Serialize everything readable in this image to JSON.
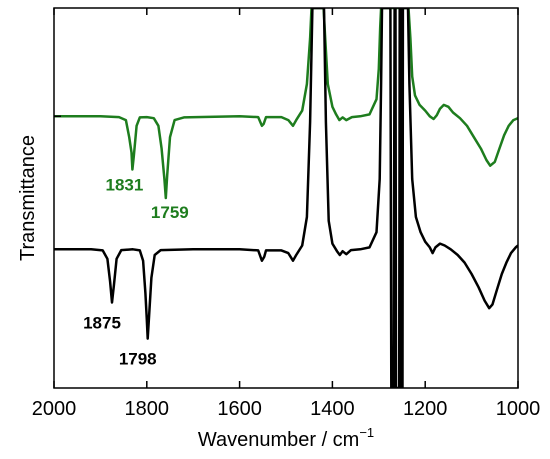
{
  "chart_data": {
    "type": "line",
    "title": "",
    "xlabel": "Wavenumber / cm",
    "xlabel_superscript": "−1",
    "ylabel": "Transmittance",
    "x_reversed": true,
    "xlim": [
      2000,
      1000
    ],
    "ylim": [
      0,
      1
    ],
    "xticks": [
      {
        "value": 2000,
        "label": "2000"
      },
      {
        "value": 1800,
        "label": "1800"
      },
      {
        "value": 1600,
        "label": "1600"
      },
      {
        "value": 1400,
        "label": "1400"
      },
      {
        "value": 1200,
        "label": "1200"
      },
      {
        "value": 1000,
        "label": "1000"
      }
    ],
    "yticks": [
      0.365,
      0.715
    ],
    "grid": false,
    "series": [
      {
        "color": "#1e7d1e",
        "points": [
          [
            2000,
            0.715
          ],
          [
            1900,
            0.715
          ],
          [
            1860,
            0.713
          ],
          [
            1845,
            0.705
          ],
          [
            1838,
            0.66
          ],
          [
            1833,
            0.62
          ],
          [
            1831,
            0.575
          ],
          [
            1828,
            0.61
          ],
          [
            1822,
            0.69
          ],
          [
            1815,
            0.712
          ],
          [
            1800,
            0.713
          ],
          [
            1785,
            0.71
          ],
          [
            1775,
            0.69
          ],
          [
            1768,
            0.63
          ],
          [
            1762,
            0.55
          ],
          [
            1759,
            0.5
          ],
          [
            1756,
            0.56
          ],
          [
            1750,
            0.66
          ],
          [
            1740,
            0.705
          ],
          [
            1720,
            0.712
          ],
          [
            1600,
            0.715
          ],
          [
            1560,
            0.713
          ],
          [
            1552,
            0.69
          ],
          [
            1548,
            0.695
          ],
          [
            1543,
            0.713
          ],
          [
            1510,
            0.713
          ],
          [
            1495,
            0.705
          ],
          [
            1485,
            0.69
          ],
          [
            1478,
            0.705
          ],
          [
            1465,
            0.73
          ],
          [
            1455,
            0.8
          ],
          [
            1448,
            0.92
          ],
          [
            1445,
            1.0
          ],
          [
            1419,
            1.0
          ],
          [
            1416,
            0.93
          ],
          [
            1410,
            0.8
          ],
          [
            1400,
            0.74
          ],
          [
            1392,
            0.72
          ],
          [
            1385,
            0.705
          ],
          [
            1378,
            0.712
          ],
          [
            1370,
            0.705
          ],
          [
            1358,
            0.713
          ],
          [
            1340,
            0.715
          ],
          [
            1320,
            0.72
          ],
          [
            1305,
            0.76
          ],
          [
            1300,
            0.84
          ],
          [
            1297,
            0.95
          ],
          [
            1295,
            1.0
          ],
          [
            1275,
            1.0
          ],
          [
            1265,
            1.0
          ],
          [
            1255,
            1.0
          ],
          [
            1245,
            1.0
          ],
          [
            1236,
            1.0
          ],
          [
            1232,
            0.92
          ],
          [
            1228,
            0.82
          ],
          [
            1222,
            0.77
          ],
          [
            1212,
            0.745
          ],
          [
            1200,
            0.73
          ],
          [
            1190,
            0.715
          ],
          [
            1182,
            0.708
          ],
          [
            1175,
            0.718
          ],
          [
            1168,
            0.735
          ],
          [
            1160,
            0.745
          ],
          [
            1150,
            0.74
          ],
          [
            1140,
            0.725
          ],
          [
            1125,
            0.71
          ],
          [
            1110,
            0.69
          ],
          [
            1095,
            0.66
          ],
          [
            1080,
            0.63
          ],
          [
            1068,
            0.6
          ],
          [
            1060,
            0.585
          ],
          [
            1050,
            0.595
          ],
          [
            1040,
            0.63
          ],
          [
            1030,
            0.665
          ],
          [
            1020,
            0.69
          ],
          [
            1010,
            0.705
          ],
          [
            1000,
            0.71
          ]
        ]
      },
      {
        "color": "#000000",
        "points": [
          [
            2000,
            0.365
          ],
          [
            1920,
            0.365
          ],
          [
            1895,
            0.362
          ],
          [
            1885,
            0.34
          ],
          [
            1879,
            0.28
          ],
          [
            1875,
            0.225
          ],
          [
            1871,
            0.27
          ],
          [
            1865,
            0.34
          ],
          [
            1855,
            0.363
          ],
          [
            1830,
            0.365
          ],
          [
            1815,
            0.362
          ],
          [
            1808,
            0.335
          ],
          [
            1803,
            0.25
          ],
          [
            1800,
            0.18
          ],
          [
            1798,
            0.13
          ],
          [
            1795,
            0.19
          ],
          [
            1790,
            0.29
          ],
          [
            1783,
            0.35
          ],
          [
            1770,
            0.363
          ],
          [
            1700,
            0.365
          ],
          [
            1600,
            0.365
          ],
          [
            1560,
            0.362
          ],
          [
            1552,
            0.335
          ],
          [
            1547,
            0.345
          ],
          [
            1543,
            0.362
          ],
          [
            1510,
            0.362
          ],
          [
            1495,
            0.355
          ],
          [
            1485,
            0.335
          ],
          [
            1478,
            0.35
          ],
          [
            1465,
            0.375
          ],
          [
            1455,
            0.45
          ],
          [
            1448,
            0.7
          ],
          [
            1443,
            1.0
          ],
          [
            1418,
            1.0
          ],
          [
            1414,
            0.7
          ],
          [
            1408,
            0.44
          ],
          [
            1400,
            0.38
          ],
          [
            1390,
            0.36
          ],
          [
            1384,
            0.35
          ],
          [
            1378,
            0.36
          ],
          [
            1370,
            0.352
          ],
          [
            1360,
            0.363
          ],
          [
            1340,
            0.365
          ],
          [
            1320,
            0.37
          ],
          [
            1305,
            0.41
          ],
          [
            1298,
            0.55
          ],
          [
            1295,
            0.8
          ],
          [
            1293,
            1.0
          ],
          [
            1275,
            1.0
          ],
          [
            1273,
            0.0
          ],
          [
            1268,
            0.0
          ],
          [
            1266,
            1.0
          ],
          [
            1264,
            1.0
          ],
          [
            1263,
            0.0
          ],
          [
            1256,
            0.0
          ],
          [
            1255,
            1.0
          ],
          [
            1253,
            1.0
          ],
          [
            1252,
            0.0
          ],
          [
            1249,
            0.0
          ],
          [
            1248,
            1.0
          ],
          [
            1237,
            1.0
          ],
          [
            1234,
            0.8
          ],
          [
            1228,
            0.55
          ],
          [
            1220,
            0.45
          ],
          [
            1210,
            0.41
          ],
          [
            1200,
            0.385
          ],
          [
            1190,
            0.37
          ],
          [
            1184,
            0.355
          ],
          [
            1178,
            0.37
          ],
          [
            1168,
            0.38
          ],
          [
            1158,
            0.375
          ],
          [
            1145,
            0.365
          ],
          [
            1130,
            0.35
          ],
          [
            1115,
            0.33
          ],
          [
            1100,
            0.3
          ],
          [
            1085,
            0.265
          ],
          [
            1072,
            0.23
          ],
          [
            1062,
            0.21
          ],
          [
            1055,
            0.22
          ],
          [
            1045,
            0.26
          ],
          [
            1035,
            0.3
          ],
          [
            1025,
            0.33
          ],
          [
            1015,
            0.355
          ],
          [
            1005,
            0.37
          ],
          [
            1000,
            0.375
          ]
        ]
      }
    ],
    "annotations": [
      {
        "text": "1831",
        "x": 1831,
        "y": 0.575,
        "color": "#1e7d1e"
      },
      {
        "text": "1759",
        "x": 1759,
        "y": 0.5,
        "color": "#1e7d1e"
      },
      {
        "text": "1875",
        "x": 1875,
        "y": 0.225,
        "color": "#000000"
      },
      {
        "text": "1798",
        "x": 1798,
        "y": 0.13,
        "color": "#000000"
      }
    ]
  }
}
